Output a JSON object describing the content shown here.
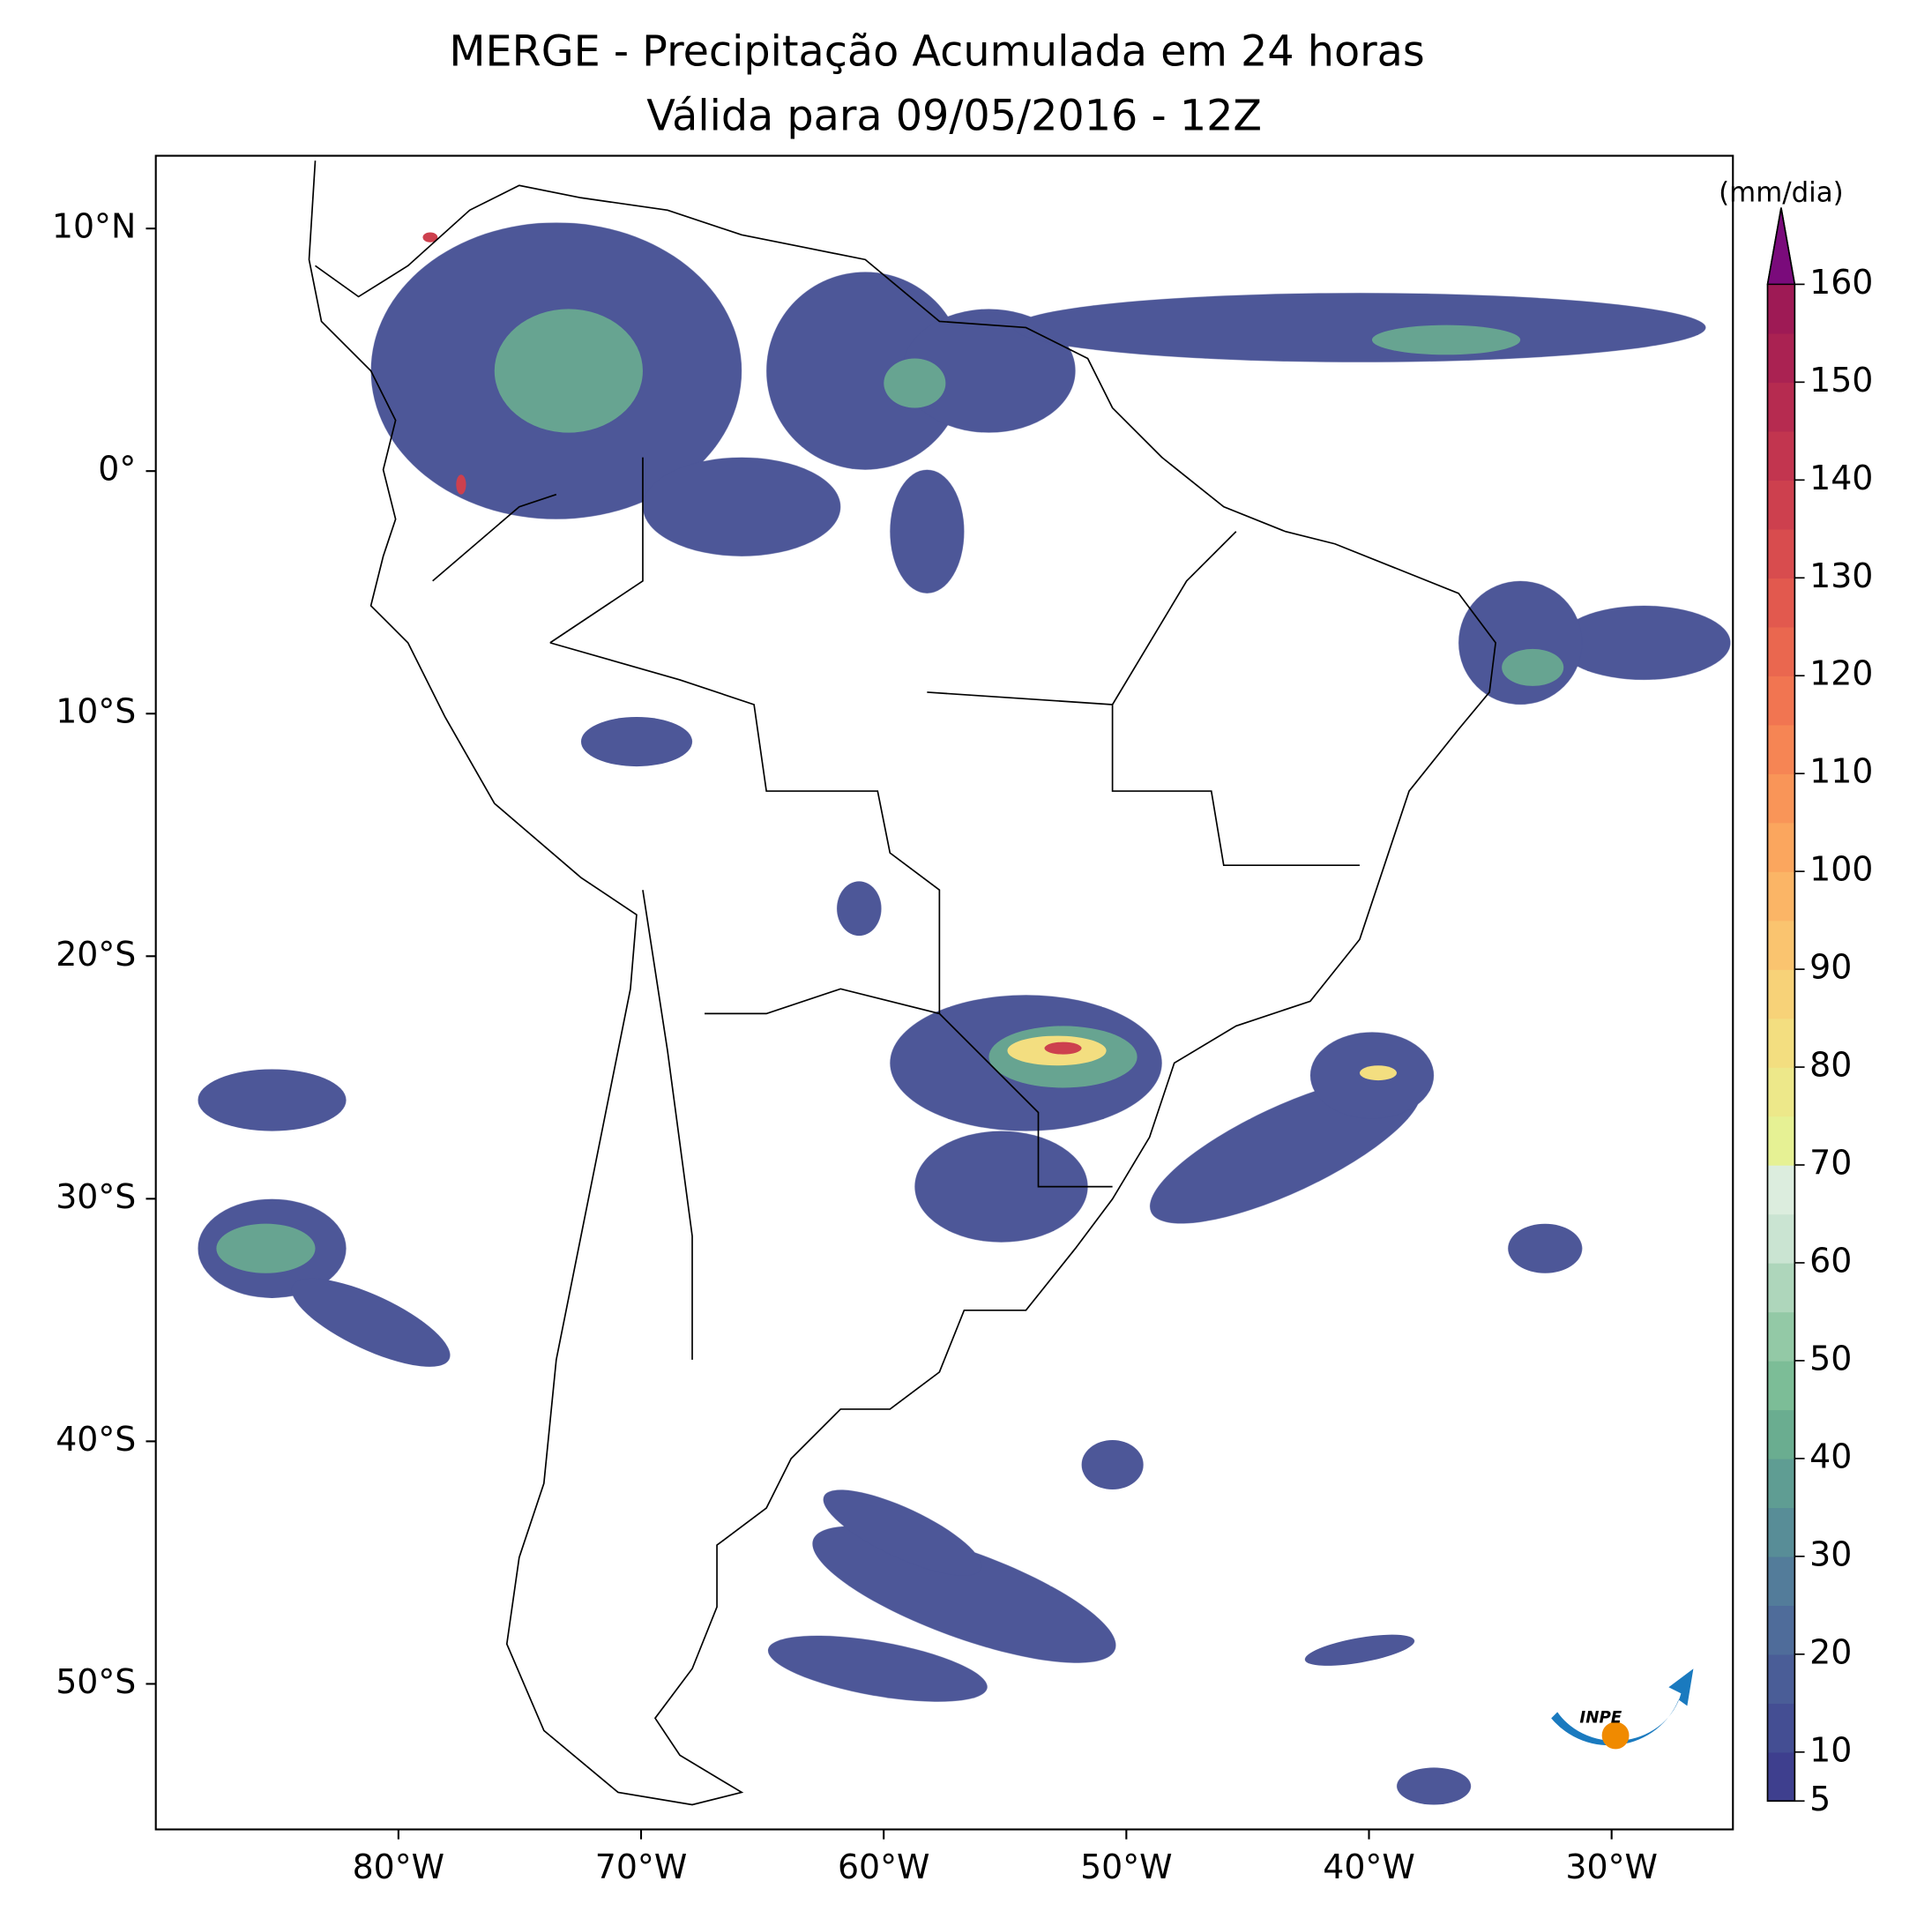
{
  "title": "MERGE - Precipitação Acumulada em 24 horas",
  "subtitle": "Válida para 09/05/2016 - 12Z",
  "map": {
    "xlim": [
      -90,
      -25
    ],
    "ylim": [
      -56,
      13
    ],
    "xticks": [
      {
        "value": -80,
        "label": "80°W"
      },
      {
        "value": -70,
        "label": "70°W"
      },
      {
        "value": -60,
        "label": "60°W"
      },
      {
        "value": -50,
        "label": "50°W"
      },
      {
        "value": -40,
        "label": "40°W"
      },
      {
        "value": -30,
        "label": "30°W"
      }
    ],
    "yticks": [
      {
        "value": 10,
        "label": "10°N"
      },
      {
        "value": 0,
        "label": "0°"
      },
      {
        "value": -10,
        "label": "10°S"
      },
      {
        "value": -20,
        "label": "20°S"
      },
      {
        "value": -30,
        "label": "30°S"
      },
      {
        "value": -40,
        "label": "40°S"
      },
      {
        "value": -50,
        "label": "50°S"
      }
    ]
  },
  "colorbar": {
    "label": "(mm/dia)",
    "lim": [
      5,
      160
    ],
    "ticks": [
      5,
      10,
      20,
      30,
      40,
      50,
      60,
      70,
      80,
      90,
      100,
      110,
      120,
      130,
      140,
      150,
      160
    ],
    "colors": [
      "#3e3f8e",
      "#444e93",
      "#4a5d97",
      "#4f6c9a",
      "#537c9a",
      "#588d97",
      "#5f9d93",
      "#6aad90",
      "#7cbd97",
      "#93c9a6",
      "#aed6bb",
      "#cae4d2",
      "#dcedde",
      "#e6f194",
      "#ede88a",
      "#f3de80",
      "#f7d278",
      "#fac46f",
      "#fbb566",
      "#fba65e",
      "#f99558",
      "#f68554",
      "#f17551",
      "#ea674f",
      "#e2594e",
      "#d84c4e",
      "#cd404e",
      "#c2354f",
      "#b62b50",
      "#aa2252",
      "#9e1a55"
    ],
    "extend_color": "#7a0b7b"
  }
}
